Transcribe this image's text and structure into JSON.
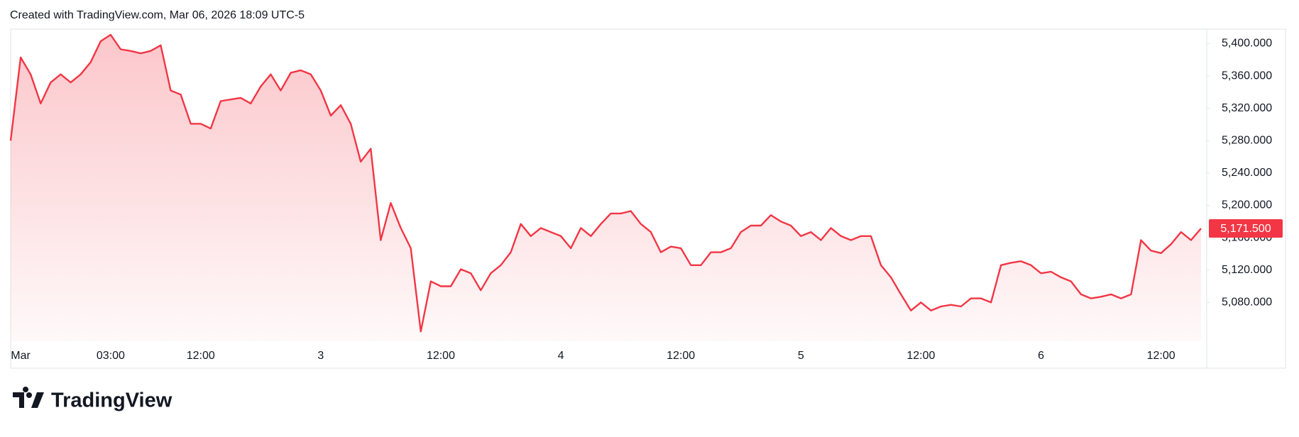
{
  "header": {
    "text": "Created with TradingView.com, Mar 06, 2026 18:09 UTC-5"
  },
  "footer": {
    "logo": "TradingView"
  },
  "chart_data": {
    "type": "area",
    "color": "#f23645",
    "grid": false,
    "xlim": [
      0,
      119
    ],
    "xticks": [
      {
        "value": 1,
        "label": "Mar"
      },
      {
        "value": 10,
        "label": "03:00"
      },
      {
        "value": 19,
        "label": "12:00"
      },
      {
        "value": 31,
        "label": "3"
      },
      {
        "value": 43,
        "label": "12:00"
      },
      {
        "value": 55,
        "label": "4"
      },
      {
        "value": 67,
        "label": "12:00"
      },
      {
        "value": 79,
        "label": "5"
      },
      {
        "value": 91,
        "label": "12:00"
      },
      {
        "value": 103,
        "label": "6"
      },
      {
        "value": 115,
        "label": "12:00"
      }
    ],
    "ylim": [
      5032,
      5418
    ],
    "yticks": [
      {
        "value": 5080,
        "label": "5,080.000"
      },
      {
        "value": 5120,
        "label": "5,120.000"
      },
      {
        "value": 5160,
        "label": "5,160.000"
      },
      {
        "value": 5200,
        "label": "5,200.000"
      },
      {
        "value": 5240,
        "label": "5,240.000"
      },
      {
        "value": 5280,
        "label": "5,280.000"
      },
      {
        "value": 5320,
        "label": "5,320.000"
      },
      {
        "value": 5360,
        "label": "5,360.000"
      },
      {
        "value": 5400,
        "label": "5,400.000"
      }
    ],
    "last_price": {
      "value": 5171.5,
      "label": "5,171.500"
    },
    "values": [
      5280,
      5383,
      5362,
      5326,
      5352,
      5362,
      5352,
      5362,
      5377,
      5403,
      5411,
      5393,
      5391,
      5388,
      5391,
      5398,
      5342,
      5337,
      5301,
      5301,
      5295,
      5329,
      5331,
      5333,
      5326,
      5347,
      5362,
      5342,
      5364,
      5367,
      5362,
      5342,
      5311,
      5324,
      5301,
      5254,
      5270,
      5157,
      5203,
      5172,
      5147,
      5044,
      5106,
      5100,
      5100,
      5121,
      5116,
      5095,
      5116,
      5126,
      5142,
      5177,
      5162,
      5172,
      5167,
      5162,
      5147,
      5172,
      5162,
      5177,
      5190,
      5190,
      5193,
      5177,
      5167,
      5142,
      5149,
      5147,
      5126,
      5126,
      5142,
      5142,
      5147,
      5167,
      5175,
      5175,
      5188,
      5180,
      5175,
      5162,
      5167,
      5157,
      5172,
      5162,
      5157,
      5162,
      5162,
      5126,
      5111,
      5090,
      5070,
      5080,
      5070,
      5075,
      5077,
      5075,
      5085,
      5085,
      5080,
      5126,
      5129,
      5131,
      5126,
      5116,
      5118,
      5111,
      5106,
      5090,
      5085,
      5087,
      5090,
      5085,
      5090,
      5157,
      5144,
      5141,
      5152,
      5167,
      5157,
      5171.5
    ]
  }
}
